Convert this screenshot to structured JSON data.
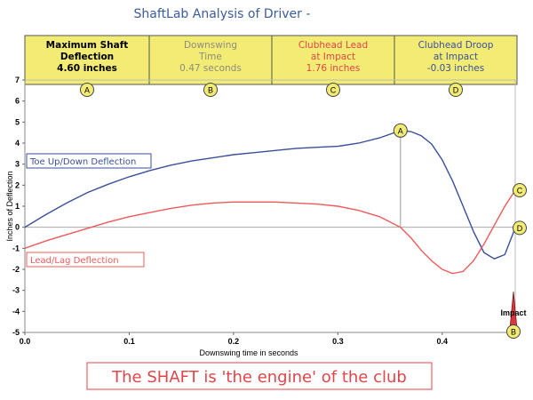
{
  "title": "ShaftLab Analysis of Driver -",
  "header_boxes": [
    {
      "line1": "Maximum Shaft",
      "line2": "Deflection",
      "line3": "4.60 inches",
      "marker": "A",
      "color": "#000000",
      "bold": true
    },
    {
      "line1": "Downswing",
      "line2": "Time",
      "line3": "0.47 seconds",
      "marker": "B",
      "color": "#8c8c7c",
      "bold": false
    },
    {
      "line1": "Clubhead Lead",
      "line2": "at Impact",
      "line3": "1.76 inches",
      "marker": "C",
      "color": "#e0464a",
      "bold": false
    },
    {
      "line1": "Clubhead Droop",
      "line2": "at Impact",
      "line3": "-0.03 inches",
      "marker": "D",
      "color": "#3a4f9c",
      "bold": false
    }
  ],
  "tagline": "The SHAFT is 'the engine' of the club",
  "impact_label": "Impact",
  "colors": {
    "header_bg": "#f3ec74",
    "toe_series": "#3a4f9c",
    "lead_series": "#f05a5a",
    "marker_fill": "#f3ec74",
    "impact_fill": "#d9363e"
  },
  "chart_data": {
    "type": "line",
    "title": "ShaftLab Analysis of Driver -",
    "xlabel": "Downswing time in seconds",
    "ylabel": "Inches of Deflection",
    "xlim": [
      0.0,
      0.47
    ],
    "ylim": [
      -5,
      7
    ],
    "xticks": [
      "0.0",
      "0.1",
      "0.2",
      "0.3",
      "0.4"
    ],
    "yticks": [
      "7",
      "6",
      "5",
      "4",
      "3",
      "2",
      "1",
      "0",
      "-1",
      "-2",
      "-3",
      "-4",
      "-5"
    ],
    "grid": false,
    "series": [
      {
        "name": "Toe Up/Down Deflection",
        "x": [
          0.0,
          0.02,
          0.04,
          0.06,
          0.08,
          0.1,
          0.12,
          0.14,
          0.16,
          0.18,
          0.2,
          0.22,
          0.24,
          0.26,
          0.28,
          0.3,
          0.32,
          0.34,
          0.36,
          0.37,
          0.38,
          0.39,
          0.4,
          0.41,
          0.42,
          0.43,
          0.44,
          0.45,
          0.46,
          0.47
        ],
        "y": [
          0.0,
          0.6,
          1.15,
          1.65,
          2.05,
          2.4,
          2.7,
          2.95,
          3.15,
          3.3,
          3.45,
          3.55,
          3.65,
          3.75,
          3.8,
          3.85,
          4.0,
          4.25,
          4.6,
          4.55,
          4.35,
          3.95,
          3.2,
          2.2,
          1.0,
          -0.2,
          -1.2,
          -1.5,
          -1.3,
          -0.03
        ]
      },
      {
        "name": "Lead/Lag Deflection",
        "x": [
          0.0,
          0.02,
          0.04,
          0.06,
          0.08,
          0.1,
          0.12,
          0.14,
          0.16,
          0.18,
          0.2,
          0.22,
          0.24,
          0.26,
          0.28,
          0.3,
          0.32,
          0.34,
          0.36,
          0.37,
          0.38,
          0.39,
          0.4,
          0.41,
          0.42,
          0.43,
          0.44,
          0.45,
          0.46,
          0.47
        ],
        "y": [
          -1.0,
          -0.65,
          -0.35,
          -0.05,
          0.25,
          0.5,
          0.7,
          0.9,
          1.05,
          1.15,
          1.2,
          1.2,
          1.2,
          1.15,
          1.1,
          1.0,
          0.8,
          0.5,
          0.0,
          -0.5,
          -1.1,
          -1.6,
          -2.0,
          -2.2,
          -2.1,
          -1.6,
          -0.8,
          0.1,
          1.0,
          1.76
        ]
      }
    ],
    "annotations": [
      {
        "label": "A",
        "x": 0.36,
        "y": 4.6,
        "series": "Toe Up/Down Deflection"
      },
      {
        "label": "C",
        "x": 0.47,
        "y": 1.76,
        "series": "Lead/Lag Deflection"
      },
      {
        "label": "D",
        "x": 0.47,
        "y": -0.03,
        "series": "Toe Up/Down Deflection"
      },
      {
        "label": "B",
        "x": 0.47,
        "y": -5,
        "note": "Impact"
      }
    ]
  }
}
